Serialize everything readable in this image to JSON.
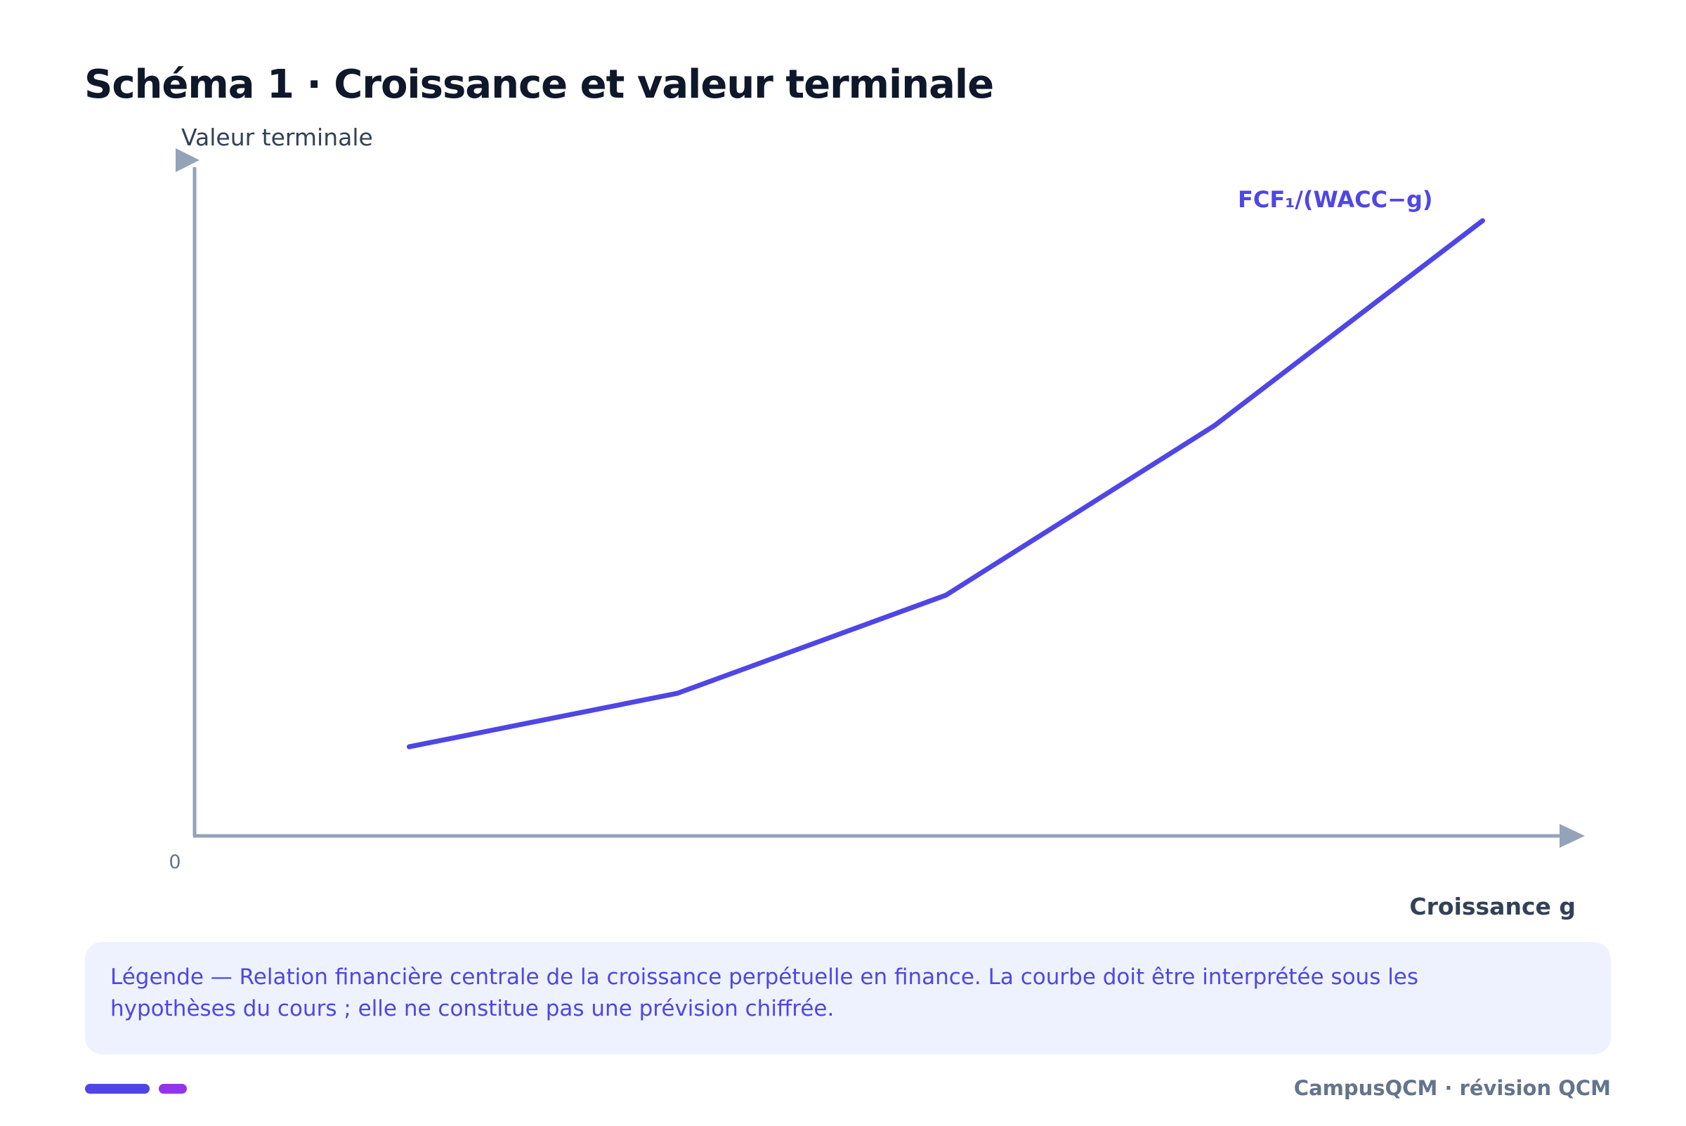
{
  "page": {
    "title": "Schéma 1 · Croissance et valeur terminale"
  },
  "chart_data": {
    "type": "line",
    "ylabel": "Valeur terminale",
    "xlabel": "Croissance g",
    "origin_label": "0",
    "curve_label": "FCF₁/(WACC−g)",
    "x": [
      1,
      2,
      3,
      4,
      5
    ],
    "series": [
      {
        "name": "FCF₁/(WACC−g)",
        "values": [
          1.0,
          1.6,
          2.7,
          4.6,
          6.9
        ],
        "color": "#4f46e5"
      }
    ],
    "xlim": [
      0.2,
      5.3
    ],
    "ylim": [
      0,
      7.5
    ],
    "grid": false,
    "axis_color": "#94a3b8"
  },
  "legend": {
    "text": "Légende — Relation financière centrale de la croissance perpétuelle en finance. La courbe doit être interprétée sous les hypothèses du cours ; elle ne constitue pas une prévision chiffrée."
  },
  "footer": {
    "brand": "CampusQCM · révision QCM",
    "accent_colors": [
      "#4f46e5",
      "#9333ea"
    ]
  }
}
